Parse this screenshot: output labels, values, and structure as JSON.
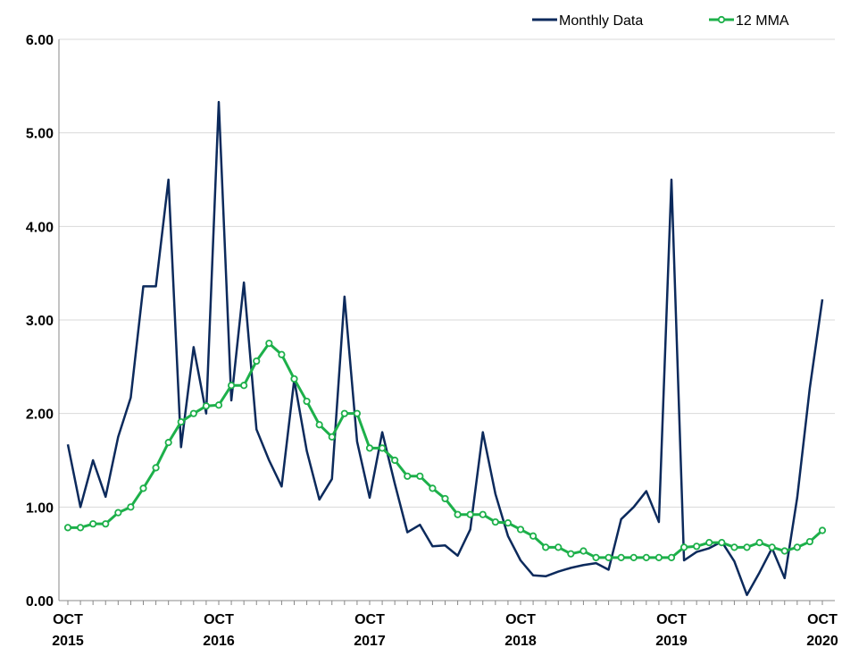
{
  "chart_data": {
    "type": "line",
    "categories": [
      "OCT 2015",
      null,
      null,
      null,
      null,
      null,
      null,
      null,
      null,
      null,
      null,
      null,
      "OCT 2016",
      null,
      null,
      null,
      null,
      null,
      null,
      null,
      null,
      null,
      null,
      null,
      "OCT 2017",
      null,
      null,
      null,
      null,
      null,
      null,
      null,
      null,
      null,
      null,
      null,
      "OCT 2018",
      null,
      null,
      null,
      null,
      null,
      null,
      null,
      null,
      null,
      null,
      null,
      "OCT 2019",
      null,
      null,
      null,
      null,
      null,
      null,
      null,
      null,
      null,
      null,
      null,
      "OCT 2020"
    ],
    "series": [
      {
        "name": "Monthly Data",
        "color": "#0c2a5c",
        "markers": false,
        "values": [
          1.67,
          1.0,
          1.5,
          1.11,
          1.75,
          2.17,
          3.36,
          3.36,
          4.5,
          1.64,
          2.71,
          2.0,
          5.33,
          2.14,
          3.4,
          1.83,
          1.5,
          1.22,
          2.36,
          1.6,
          1.08,
          1.3,
          3.25,
          1.7,
          1.1,
          1.8,
          1.25,
          0.73,
          0.81,
          0.58,
          0.59,
          0.48,
          0.76,
          1.8,
          1.14,
          0.69,
          0.43,
          0.27,
          0.26,
          0.31,
          0.35,
          0.38,
          0.4,
          0.33,
          0.87,
          1.0,
          1.17,
          0.84,
          4.5,
          0.43,
          0.52,
          0.56,
          0.63,
          0.42,
          0.06,
          0.3,
          0.56,
          0.24,
          1.1,
          2.27,
          3.22
        ]
      },
      {
        "name": "12 MMA",
        "color": "#1db04a",
        "markers": true,
        "values": [
          0.78,
          0.78,
          0.82,
          0.82,
          0.94,
          1.0,
          1.2,
          1.42,
          1.69,
          1.91,
          2.0,
          2.08,
          2.09,
          2.3,
          2.3,
          2.56,
          2.75,
          2.63,
          2.37,
          2.13,
          1.88,
          1.75,
          2.0,
          2.0,
          1.63,
          1.63,
          1.5,
          1.33,
          1.33,
          1.2,
          1.09,
          0.92,
          0.92,
          0.92,
          0.84,
          0.83,
          0.76,
          0.69,
          0.57,
          0.57,
          0.5,
          0.53,
          0.46,
          0.46,
          0.46,
          0.46,
          0.46,
          0.46,
          0.46,
          0.57,
          0.58,
          0.62,
          0.62,
          0.57,
          0.57,
          0.62,
          0.57,
          0.53,
          0.57,
          0.63,
          0.75
        ]
      }
    ],
    "ylim": [
      0,
      6
    ],
    "yticks": [
      {
        "value": 0,
        "label": "0.00"
      },
      {
        "value": 1,
        "label": "1.00"
      },
      {
        "value": 2,
        "label": "2.00"
      },
      {
        "value": 3,
        "label": "3.00"
      },
      {
        "value": 4,
        "label": "4.00"
      },
      {
        "value": 5,
        "label": "5.00"
      },
      {
        "value": 6,
        "label": "6.00"
      }
    ],
    "grid": true,
    "legend": "top-right"
  }
}
